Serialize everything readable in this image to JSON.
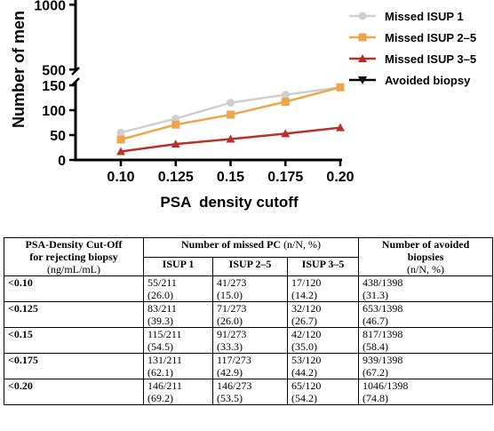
{
  "chart_data": {
    "type": "line",
    "ylabel": "Number of men",
    "xlabel": "PSA  density cutoff",
    "x": [
      0.1,
      0.125,
      0.15,
      0.175,
      0.2
    ],
    "x_tick_labels": [
      "0.10",
      "0.125",
      "0.15",
      "0.175",
      "0.20"
    ],
    "y_axis_broken": true,
    "lower_segment": {
      "ylim": [
        0,
        150
      ],
      "ticks": [
        "0",
        "50",
        "100",
        "150"
      ]
    },
    "upper_segment": {
      "ylim": [
        450,
        1050
      ],
      "ticks": [
        "500",
        "1000"
      ]
    },
    "legend_placement": "top-right",
    "series": [
      {
        "name": "Missed ISUP 1",
        "values": [
          55,
          83,
          115,
          131,
          146
        ],
        "color": "#cfcfcf",
        "marker": "circle"
      },
      {
        "name": "Missed ISUP 2–5",
        "values": [
          41,
          71,
          91,
          117,
          146
        ],
        "color": "#f0a54a",
        "marker": "square"
      },
      {
        "name": "Missed ISUP 3–5",
        "values": [
          17,
          32,
          42,
          53,
          65
        ],
        "color": "#b8312a",
        "marker": "triangle-up"
      },
      {
        "name": "Avoided biopsy",
        "values": [
          438,
          653,
          817,
          939,
          1046
        ],
        "color": "#000000",
        "marker": "triangle-down"
      }
    ]
  },
  "table": {
    "header": {
      "col1_line1": "PSA-Density Cut-Off",
      "col1_line2": "for rejecting biopsy",
      "col1_unit": "(ng/mL/mL)",
      "missed_title": "Number of missed PC",
      "missed_unit": "(n/N, %)",
      "isup1": "ISUP 1",
      "isup25": "ISUP 2–5",
      "isup35": "ISUP 3–5",
      "avoided_line1": "Number of avoided",
      "avoided_line2": "biopsies",
      "avoided_unit": "(n/N, %)"
    },
    "rows": [
      {
        "cutoff": "<0.10",
        "isup1": "55/211",
        "isup1_pct": "(26.0)",
        "isup25": "41/273",
        "isup25_pct": "(15.0)",
        "isup35": "17/120",
        "isup35_pct": "(14.2)",
        "avoided": "438/1398",
        "avoided_pct": "(31.3)"
      },
      {
        "cutoff": "<0.125",
        "isup1": "83/211",
        "isup1_pct": "(39.3)",
        "isup25": "71/273",
        "isup25_pct": "(26.0)",
        "isup35": "32/120",
        "isup35_pct": "(26.7)",
        "avoided": "653/1398",
        "avoided_pct": "(46.7)"
      },
      {
        "cutoff": "<0.15",
        "isup1": "115/211",
        "isup1_pct": "(54.5)",
        "isup25": "91/273",
        "isup25_pct": "(33.3)",
        "isup35": "42/120",
        "isup35_pct": "(35.0)",
        "avoided": "817/1398",
        "avoided_pct": "(58.4)"
      },
      {
        "cutoff": "<0.175",
        "isup1": "131/211",
        "isup1_pct": "(62.1)",
        "isup25": "117/273",
        "isup25_pct": "(42.9)",
        "isup35": "53/120",
        "isup35_pct": "(44.2)",
        "avoided": "939/1398",
        "avoided_pct": "(67.2)"
      },
      {
        "cutoff": "<0.20",
        "isup1": "146/211",
        "isup1_pct": "(69.2)",
        "isup25": "146/273",
        "isup25_pct": "(53.5)",
        "isup35": "65/120",
        "isup35_pct": "(54.2)",
        "avoided": "1046/1398",
        "avoided_pct": "(74.8)"
      }
    ]
  }
}
